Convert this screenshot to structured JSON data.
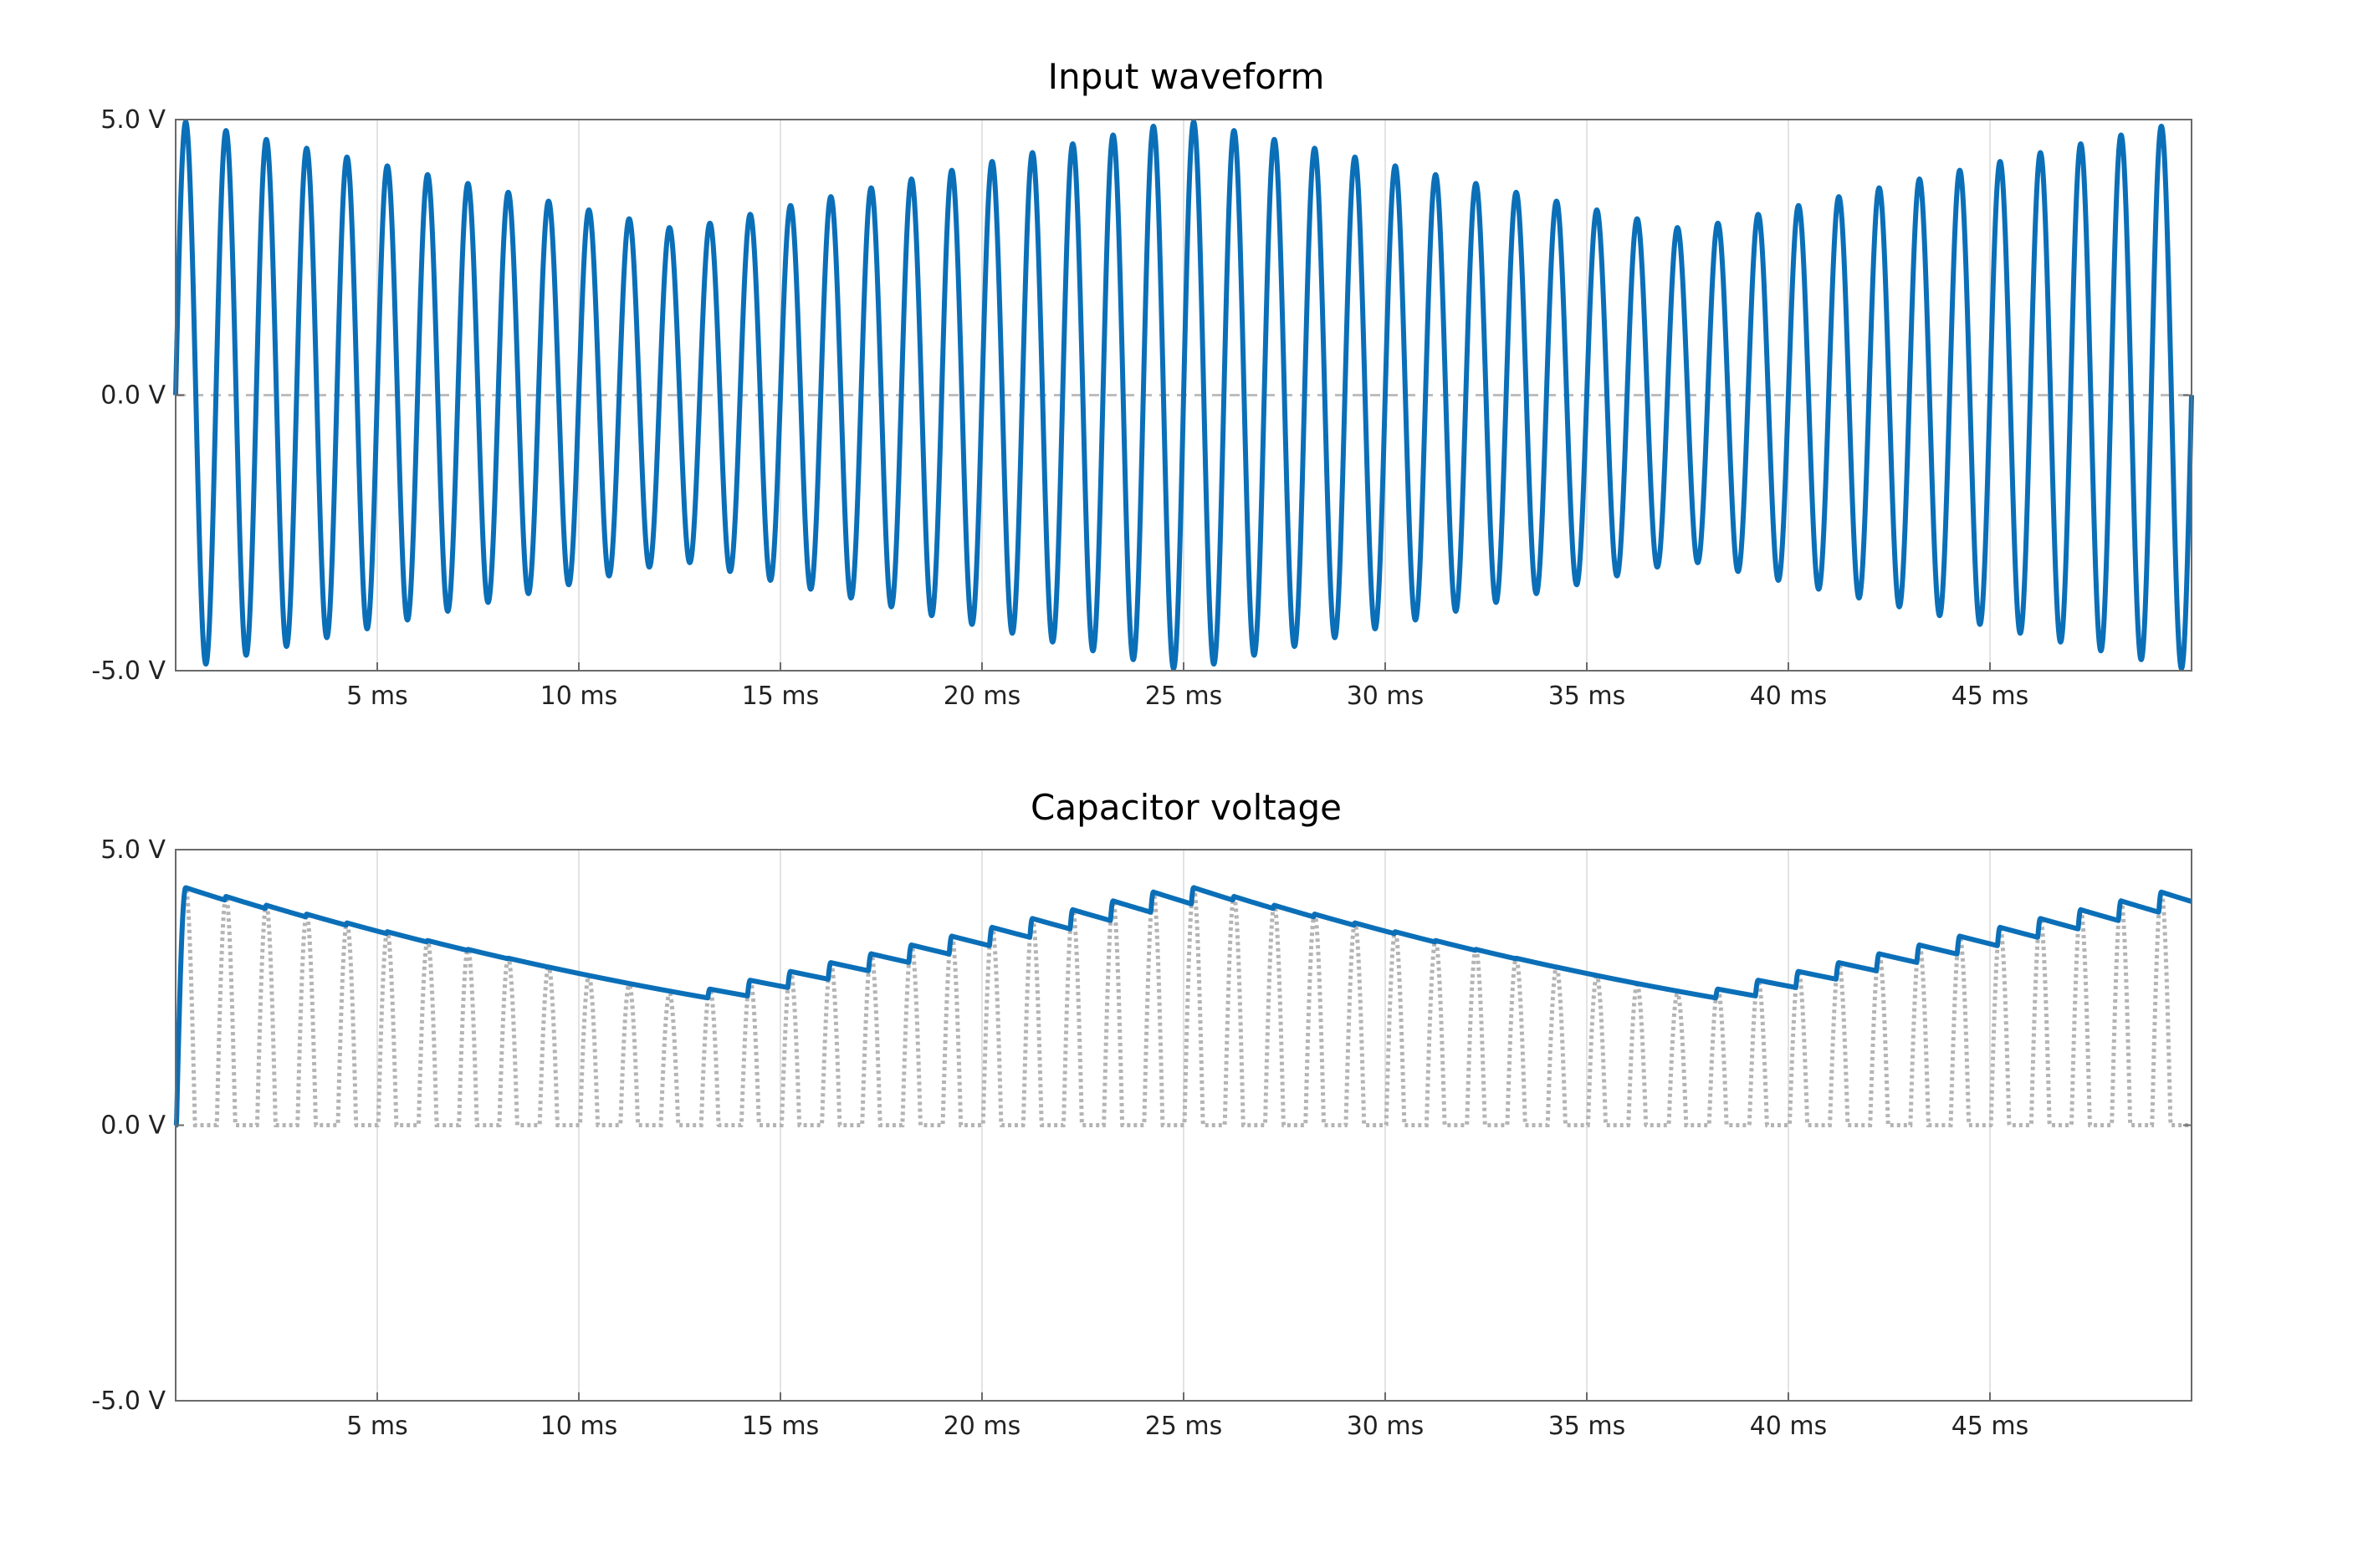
{
  "chart_data": [
    {
      "type": "line",
      "title": "Input waveform",
      "xlabel": "",
      "ylabel": "",
      "x_unit": "ms",
      "xlim": [
        0,
        50
      ],
      "ylim": [
        -5,
        5
      ],
      "x_ticks": [
        5,
        10,
        15,
        20,
        25,
        30,
        35,
        40,
        45
      ],
      "x_tick_labels": [
        "5 ms",
        "10 ms",
        "15 ms",
        "20 ms",
        "25 ms",
        "30 ms",
        "35 ms",
        "40 ms",
        "45 ms"
      ],
      "y_ticks": [
        5,
        0,
        -5
      ],
      "y_tick_labels": [
        "5.0 V",
        "0.0 V",
        "-5.0 V"
      ],
      "grid": true,
      "zero_line": "dashed gray",
      "colors": {
        "signal": "#0b6fb8",
        "zero_line": "#bdbdbd",
        "grid": "#e3e3e3"
      },
      "signal": {
        "waveform": "sine",
        "cycles_in_window": 50,
        "envelope": {
          "t_ms": [
            0,
            12.5,
            25,
            37.5,
            50
          ],
          "amplitude_V": [
            5.0,
            3.0,
            5.0,
            3.0,
            5.0
          ]
        }
      }
    },
    {
      "type": "line",
      "title": "Capacitor voltage",
      "xlabel": "",
      "ylabel": "",
      "x_unit": "ms",
      "xlim": [
        0,
        50
      ],
      "ylim": [
        -5,
        5
      ],
      "x_ticks": [
        5,
        10,
        15,
        20,
        25,
        30,
        35,
        40,
        45
      ],
      "x_tick_labels": [
        "5 ms",
        "10 ms",
        "15 ms",
        "20 ms",
        "25 ms",
        "30 ms",
        "35 ms",
        "40 ms",
        "45 ms"
      ],
      "y_ticks": [
        5,
        0,
        -5
      ],
      "y_tick_labels": [
        "5.0 V",
        "0.0 V",
        "-5.0 V"
      ],
      "grid": true,
      "colors": {
        "capacitor": "#0b6fb8",
        "rectified": "#b4b4b4"
      },
      "capacitor": {
        "diode_drop_V": 0.65,
        "discharge_per_ms_fraction": 0.055,
        "start_V": 0.0,
        "end_V": 4.1
      },
      "rectified_input": {
        "style": "dotted gray",
        "diode_drop_V": 0.65
      }
    }
  ]
}
